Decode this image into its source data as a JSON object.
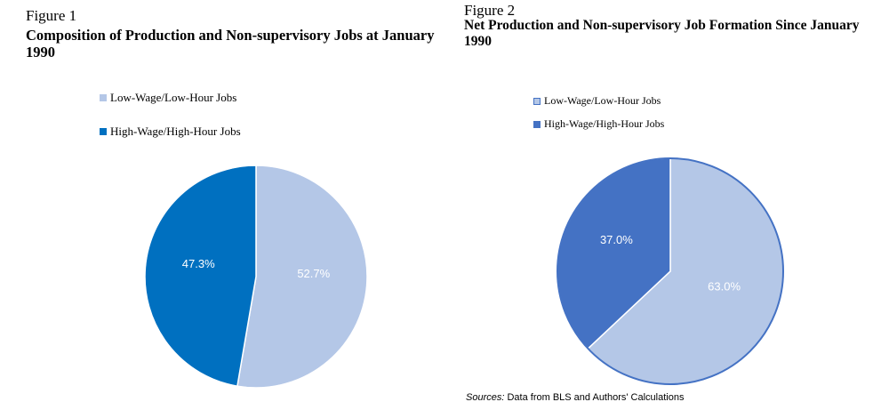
{
  "chart_data": [
    {
      "type": "pie",
      "figure_label": "Figure 1",
      "title": "Composition of Production and Non-supervisory Jobs at January 1990",
      "categories": [
        "Low-Wage/Low-Hour Jobs",
        "High-Wage/High-Hour Jobs"
      ],
      "values": [
        52.7,
        47.3
      ],
      "value_labels": [
        "52.7%",
        "47.3%"
      ],
      "colors": [
        "#b4c7e7",
        "#0070c0"
      ],
      "legend_position": "top-left"
    },
    {
      "type": "pie",
      "figure_label": "Figure 2",
      "title": "Net Production and Non-supervisory Job Formation Since January 1990",
      "categories": [
        "Low-Wage/Low-Hour Jobs",
        "High-Wage/High-Hour Jobs"
      ],
      "values": [
        63.0,
        37.0
      ],
      "value_labels": [
        "63.0%",
        "37.0%"
      ],
      "colors": [
        "#b4c7e7",
        "#4472c4"
      ],
      "legend_position": "top-left"
    }
  ],
  "source": {
    "prefix": "Sources:",
    "text": "Data from BLS and Authors' Calculations"
  }
}
